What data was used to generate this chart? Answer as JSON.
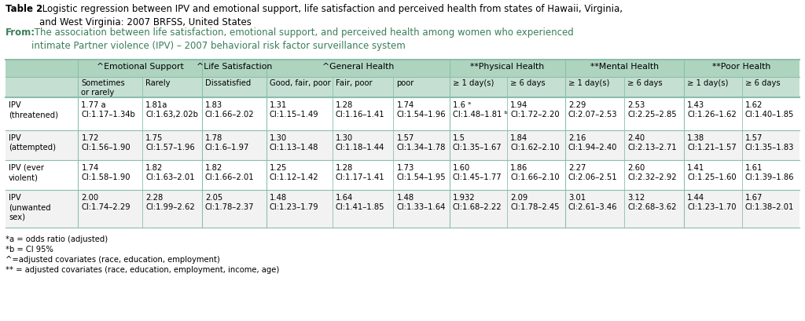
{
  "title_bold": "Table 2",
  "title_rest": " Logistic regression between IPV and emotional support, life satisfaction and perceived health from states of Hawaii, Virginia,\nand West Virginia: 2007 BRFSS, United States",
  "from_label": "From:",
  "from_text": " The association between life satisfaction, emotional support, and perceived health among women who experienced\nintimate Partner violence (IPV) – 2007 behavioral risk factor surveillance system",
  "from_color": "#3a7d5a",
  "header2": [
    "Sometimes\nor rarely",
    "Rarely",
    "Dissatisfied",
    "Good, fair, poor",
    "Fair, poor",
    "poor",
    "≥ 1 day(s)",
    "≥ 6 days",
    "≥ 1 day(s)",
    "≥ 6 days",
    "≥ 1 day(s)",
    "≥ 6 days"
  ],
  "row_labels": [
    "IPV\n(threatened)",
    "IPV\n(attempted)",
    "IPV (ever\nviolent)",
    "IPV\n(unwanted\nsex)"
  ],
  "rows": [
    [
      "1.77 a\nCI:1.17–1.34b",
      "1.81a\nCI:1.63,2.02b",
      "1.83\nCI:1.66–2.02",
      "1.31\nCI:1.15–1.49",
      "1.28\nCI:1.16–1.41",
      "1.74\nCI:1.54–1.96",
      "1.6 ᵃ\nCI:1.48–1.81 ᵇ",
      "1.94\nCI:1.72–2.20",
      "2.29\nCI:2.07–2.53",
      "2.53\nCI:2.25–2.85",
      "1.43\nCI:1.26–1.62",
      "1.62\nCI:1.40–1.85"
    ],
    [
      "1.72\nCI:1.56–1.90",
      "1.75\nCI:1.57–1.96",
      "1.78\nCI:1.6–1.97",
      "1.30\nCI:1.13–1.48",
      "1.30\nCI:1.18–1.44",
      "1.57\nCI:1.34–1.78",
      "1.5\nCI:1.35–1.67",
      "1.84\nCI:1.62–2.10",
      "2.16\nCI:1.94–2.40",
      "2.40\nCI:2.13–2.71",
      "1.38\nCI:1.21–1.57",
      "1.57\nCI:1.35–1.83"
    ],
    [
      "1.74\nCI:1.58–1.90",
      "1.82\nCI:1.63–2.01",
      "1.82\nCI:1.66–2.01",
      "1.25\nCI:1.12–1.42",
      "1.28\nCI:1.17–1.41",
      "1.73\nCI:1.54–1.95",
      "1.60\nCI:1.45–1.77",
      "1.86\nCI:1.66–2.10",
      "2.27\nCI:2.06–2.51",
      "2.60\nCI:2.32–2.92",
      "1.41\nCI:1.25–1.60",
      "1.61\nCI:1.39–1.86"
    ],
    [
      "2.00\nCI:1.74–2.29",
      "2.28\nCI:1.99–2.62",
      "2.05\nCI:1.78–2.37",
      "1.48\nCI:1.23–1.79",
      "1.64\nCI:1.41–1.85",
      "1.48\nCI:1.33–1.64",
      "1.932\nCI:1.68–2.22",
      "2.09\nCI:1.78–2.45",
      "3.01\nCI:2.61–3.46",
      "3.12\nCI:2.68–3.62",
      "1.44\nCI:1.23–1.70",
      "1.67\nCI:1.38–2.01"
    ]
  ],
  "footnotes": [
    "*a = odds ratio (adjusted)",
    "*b = CI 95%",
    "^=adjusted covariates (race, education, employment)",
    "** = adjusted covariates (race, education, employment, income, age)"
  ],
  "header_bg": "#aed4c0",
  "subheader_bg": "#c5e0d2",
  "row_bg_odd": "#ffffff",
  "row_bg_even": "#f2f2f2",
  "table_border": "#8bbfaa",
  "bg_color": "#ffffff",
  "text_color": "#000000",
  "title_fontsize": 8.5,
  "cell_fontsize": 7.2,
  "header_fontsize": 7.8
}
